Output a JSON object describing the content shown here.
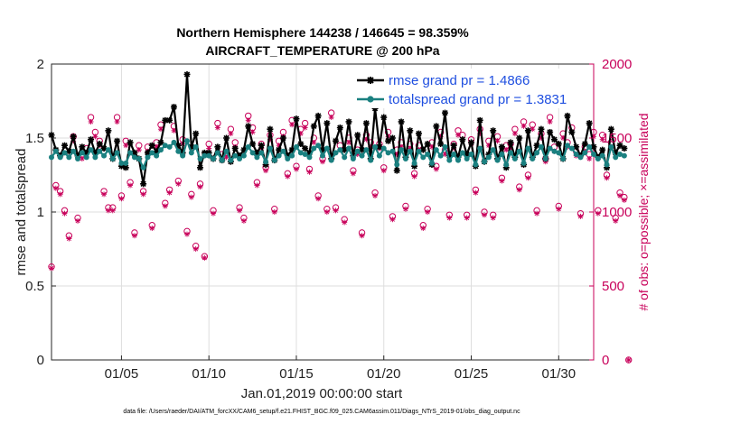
{
  "chart_data": {
    "type": "line",
    "title_line1": "Northern Hemisphere 144238 / 146645 = 98.359%",
    "title_line2": "AIRCRAFT_TEMPERATURE @ 200 hPa",
    "xlabel": "Jan.01,2019 00:00:00 start",
    "ylabel_left": "rmse and totalspread",
    "ylabel_right": "# of obs: o=possible; ×=assimilated",
    "footnote": "data file: /Users/raeder/DAI/ATM_forcXX/CAM6_setup/f.e21.FHIST_BGC.f09_025.CAM6assim.011/Diags_NTrS_2019-01/obs_diag_output.nc",
    "xlim": [
      1,
      32
    ],
    "ylim_left": [
      0,
      2
    ],
    "ylim_right": [
      0,
      2000
    ],
    "x_tick_values": [
      5,
      10,
      15,
      20,
      25,
      30
    ],
    "x_tick_labels": [
      "01/05",
      "01/10",
      "01/15",
      "01/20",
      "01/25",
      "01/30"
    ],
    "y_left_ticks": [
      0,
      0.5,
      1,
      1.5,
      2
    ],
    "y_left_tick_labels": [
      "0",
      "0.5",
      "1",
      "1.5",
      "2"
    ],
    "y_right_ticks": [
      0,
      500,
      1000,
      1500,
      2000
    ],
    "y_right_tick_labels": [
      "0",
      "500",
      "1000",
      "1500",
      "2000"
    ],
    "time_step_days": 0.25,
    "series": [
      {
        "name": "rmse grand pr = 1.4866",
        "color": "#000000",
        "values": [
          1.52,
          1.42,
          1.38,
          1.45,
          1.41,
          1.51,
          1.38,
          1.44,
          1.4,
          1.49,
          1.4,
          1.46,
          1.43,
          1.55,
          1.36,
          1.48,
          1.31,
          1.3,
          1.47,
          1.4,
          1.36,
          1.19,
          1.4,
          1.45,
          1.41,
          1.47,
          1.62,
          1.62,
          1.71,
          1.45,
          1.4,
          1.93,
          1.44,
          1.53,
          1.3,
          1.4,
          1.4,
          1.36,
          1.44,
          1.35,
          1.5,
          1.34,
          1.43,
          1.38,
          1.42,
          1.58,
          1.46,
          1.4,
          1.45,
          1.32,
          1.56,
          1.35,
          1.42,
          1.5,
          1.38,
          1.42,
          1.63,
          1.46,
          1.43,
          1.4,
          1.58,
          1.65,
          1.42,
          1.6,
          1.36,
          1.48,
          1.57,
          1.42,
          1.61,
          1.38,
          1.52,
          1.42,
          1.6,
          1.36,
          1.7,
          1.44,
          1.64,
          1.48,
          1.5,
          1.28,
          1.61,
          1.37,
          1.55,
          1.31,
          1.53,
          1.42,
          1.46,
          1.32,
          1.58,
          1.46,
          1.67,
          1.38,
          1.45,
          1.37,
          1.49,
          1.39,
          1.47,
          1.31,
          1.62,
          1.34,
          1.39,
          1.55,
          1.36,
          1.44,
          1.3,
          1.47,
          1.37,
          1.5,
          1.32,
          1.55,
          1.37,
          1.45,
          1.56,
          1.36,
          1.54,
          1.49,
          1.46,
          1.36,
          1.65,
          1.54,
          1.44,
          1.38,
          1.46,
          1.6,
          1.44,
          1.37,
          1.42,
          1.3,
          1.56,
          1.4,
          1.45,
          1.43
        ]
      },
      {
        "name": "totalspread grand pr = 1.3831",
        "color": "#1a8080",
        "values": [
          1.37,
          1.41,
          1.37,
          1.4,
          1.37,
          1.41,
          1.36,
          1.4,
          1.37,
          1.42,
          1.37,
          1.41,
          1.38,
          1.42,
          1.36,
          1.4,
          1.33,
          1.33,
          1.4,
          1.37,
          1.36,
          1.3,
          1.37,
          1.4,
          1.38,
          1.42,
          1.45,
          1.44,
          1.47,
          1.41,
          1.38,
          1.48,
          1.4,
          1.44,
          1.36,
          1.38,
          1.38,
          1.36,
          1.4,
          1.35,
          1.41,
          1.35,
          1.38,
          1.36,
          1.38,
          1.44,
          1.4,
          1.37,
          1.4,
          1.34,
          1.43,
          1.35,
          1.38,
          1.41,
          1.36,
          1.38,
          1.44,
          1.4,
          1.39,
          1.37,
          1.43,
          1.45,
          1.38,
          1.43,
          1.35,
          1.4,
          1.42,
          1.37,
          1.43,
          1.36,
          1.41,
          1.38,
          1.42,
          1.35,
          1.44,
          1.38,
          1.43,
          1.4,
          1.41,
          1.32,
          1.42,
          1.36,
          1.41,
          1.33,
          1.41,
          1.37,
          1.39,
          1.33,
          1.42,
          1.38,
          1.44,
          1.35,
          1.39,
          1.35,
          1.4,
          1.36,
          1.39,
          1.32,
          1.43,
          1.34,
          1.37,
          1.42,
          1.35,
          1.39,
          1.32,
          1.4,
          1.36,
          1.41,
          1.33,
          1.43,
          1.36,
          1.4,
          1.44,
          1.36,
          1.43,
          1.41,
          1.4,
          1.36,
          1.45,
          1.43,
          1.39,
          1.37,
          1.4,
          1.44,
          1.39,
          1.36,
          1.38,
          1.32,
          1.44,
          1.37,
          1.39,
          1.38
        ]
      },
      {
        "name": "possible obs",
        "axis": "right",
        "color": "#c8005a",
        "marker": "circle",
        "values": [
          630,
          1180,
          1140,
          1010,
          840,
          1510,
          960,
          1390,
          1430,
          1640,
          1540,
          1480,
          1140,
          1030,
          1030,
          1640,
          1110,
          1480,
          1200,
          860,
          1450,
          1140,
          1440,
          910,
          1470,
          1590,
          1060,
          1150,
          1580,
          1210,
          1490,
          870,
          1120,
          770,
          1190,
          700,
          1460,
          1010,
          1600,
          1390,
          1400,
          1560,
          1470,
          1030,
          960,
          1650,
          1570,
          1200,
          1460,
          1300,
          1520,
          1020,
          1480,
          1540,
          1260,
          1620,
          1310,
          1560,
          1600,
          1290,
          1500,
          1110,
          1360,
          1020,
          1670,
          1030,
          1450,
          950,
          1500,
          1280,
          1420,
          860,
          1520,
          1470,
          1130,
          1460,
          1300,
          1540,
          970,
          1420,
          1470,
          1040,
          1460,
          1260,
          1450,
          910,
          1020,
          1470,
          1310,
          1540,
          1420,
          980,
          1460,
          1550,
          1520,
          980,
          1490,
          1150,
          1560,
          1000,
          1480,
          980,
          1510,
          1230,
          1450,
          1460,
          1560,
          1170,
          1610,
          1250,
          1590,
          1010,
          1530,
          1360,
          1640,
          1440,
          1040,
          1530,
          1470,
          1570,
          1410,
          990,
          1440,
          1390,
          1540,
          1010,
          1520,
          1250,
          1470,
          960,
          1130,
          1100,
          0
        ]
      },
      {
        "name": "assimilated obs",
        "axis": "right",
        "color": "#c8005a",
        "marker": "star",
        "values": [
          620,
          1160,
          1120,
          990,
          820,
          1480,
          940,
          1360,
          1400,
          1610,
          1510,
          1450,
          1120,
          1010,
          1010,
          1610,
          1090,
          1450,
          1180,
          840,
          1420,
          1120,
          1410,
          890,
          1440,
          1560,
          1040,
          1130,
          1550,
          1190,
          1460,
          850,
          1100,
          750,
          1170,
          690,
          1430,
          990,
          1570,
          1360,
          1370,
          1530,
          1440,
          1010,
          940,
          1620,
          1540,
          1180,
          1430,
          1280,
          1490,
          1000,
          1450,
          1510,
          1240,
          1590,
          1290,
          1530,
          1570,
          1270,
          1470,
          1090,
          1340,
          1000,
          1640,
          1010,
          1420,
          930,
          1470,
          1260,
          1390,
          840,
          1490,
          1440,
          1110,
          1430,
          1280,
          1510,
          950,
          1390,
          1440,
          1020,
          1430,
          1240,
          1420,
          890,
          1000,
          1440,
          1290,
          1510,
          1390,
          960,
          1430,
          1520,
          1490,
          960,
          1460,
          1130,
          1530,
          980,
          1450,
          960,
          1480,
          1210,
          1420,
          1430,
          1530,
          1150,
          1580,
          1230,
          1560,
          990,
          1500,
          1340,
          1610,
          1410,
          1020,
          1500,
          1440,
          1540,
          1380,
          970,
          1410,
          1360,
          1510,
          990,
          1490,
          1230,
          1440,
          940,
          1110,
          1080,
          0
        ]
      }
    ],
    "legend": {
      "position": "top-right",
      "rmse_label": "rmse grand pr = 1.4866",
      "spread_label": "totalspread grand pr = 1.3831"
    }
  }
}
